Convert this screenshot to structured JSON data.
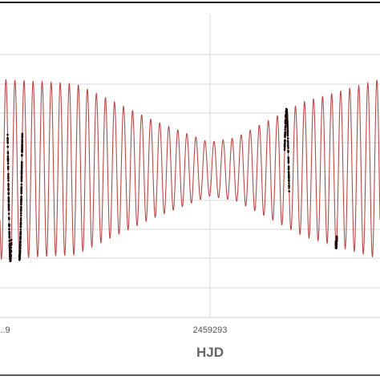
{
  "chart_data": {
    "type": "line",
    "title": "",
    "xlabel": "HJD",
    "ylabel": "",
    "x_tick_labels": [
      "...9",
      "2459293"
    ],
    "grid": true,
    "legend": "none",
    "series": [
      {
        "style": "line",
        "color": "#b94a48",
        "description_of_shape": "beating sinusoid",
        "cycles_visible": 42,
        "envelope_amplitude": [
          [
            0.0,
            1.0
          ],
          [
            0.2,
            0.95
          ],
          [
            0.4,
            0.55
          ],
          [
            0.55,
            0.3
          ],
          [
            0.62,
            0.35
          ],
          [
            0.8,
            0.75
          ],
          [
            1.0,
            1.0
          ]
        ]
      },
      {
        "style": "points",
        "color": "#1a0d0d",
        "clusters": [
          {
            "x_fraction": 0.025,
            "spread": 0.01
          },
          {
            "x_fraction": 0.055,
            "spread": 0.008
          },
          {
            "x_fraction": 0.755,
            "spread": 0.012
          },
          {
            "x_fraction": 0.885,
            "spread": 0.003
          }
        ]
      }
    ]
  },
  "colors": {
    "grid": "#d9d9d9",
    "frame": "#222222",
    "model_line": "#b94a48",
    "observations": "#1a0d0d"
  }
}
